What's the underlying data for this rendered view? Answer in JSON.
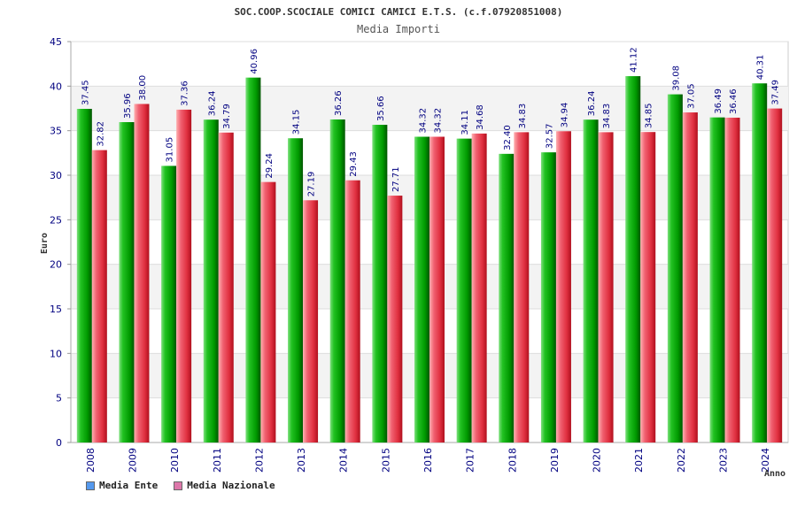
{
  "chart_data": {
    "type": "bar",
    "title": "SOC.COOP.SCOCIALE COMICI CAMICI E.T.S. (c.f.07920851008)",
    "subtitle": "Media Importi",
    "ylabel": "Euro",
    "xlabel": "Anno",
    "ylim": [
      0,
      45
    ],
    "yticks": [
      "0",
      "5",
      "10",
      "15",
      "20",
      "25",
      "30",
      "35",
      "40",
      "45"
    ],
    "categories": [
      "2008",
      "2009",
      "2010",
      "2011",
      "2012",
      "2013",
      "2014",
      "2015",
      "2016",
      "2017",
      "2018",
      "2019",
      "2020",
      "2021",
      "2022",
      "2023",
      "2024"
    ],
    "series": [
      {
        "name": "Media Ente",
        "color": "#22aa22",
        "values": [
          37.45,
          35.96,
          31.05,
          36.24,
          40.96,
          34.15,
          36.26,
          35.66,
          34.32,
          34.11,
          32.4,
          32.57,
          36.24,
          41.12,
          39.08,
          36.49,
          40.31
        ],
        "labels": [
          "37.45",
          "35.96",
          "31.05",
          "36.24",
          "40.96",
          "34.15",
          "36.26",
          "35.66",
          "34.32",
          "34.11",
          "32.40",
          "32.57",
          "36.24",
          "41.12",
          "39.08",
          "36.49",
          "40.31"
        ]
      },
      {
        "name": "Media Nazionale",
        "color": "#e84a5a",
        "values": [
          32.82,
          38.0,
          37.36,
          34.79,
          29.24,
          27.19,
          29.43,
          27.71,
          34.32,
          34.68,
          34.83,
          34.94,
          34.83,
          34.85,
          37.05,
          36.46,
          37.49
        ],
        "labels": [
          "32.82",
          "38.00",
          "37.36",
          "34.79",
          "29.24",
          "27.19",
          "29.43",
          "27.71",
          "34.32",
          "34.68",
          "34.83",
          "34.94",
          "34.83",
          "34.85",
          "37.05",
          "36.46",
          "37.49"
        ]
      }
    ],
    "legend": [
      {
        "label": "Media Ente",
        "color": "#5599ee"
      },
      {
        "label": "Media Nazionale",
        "color": "#dd77aa"
      }
    ],
    "grid": true,
    "legend_position": "bottom-left"
  }
}
